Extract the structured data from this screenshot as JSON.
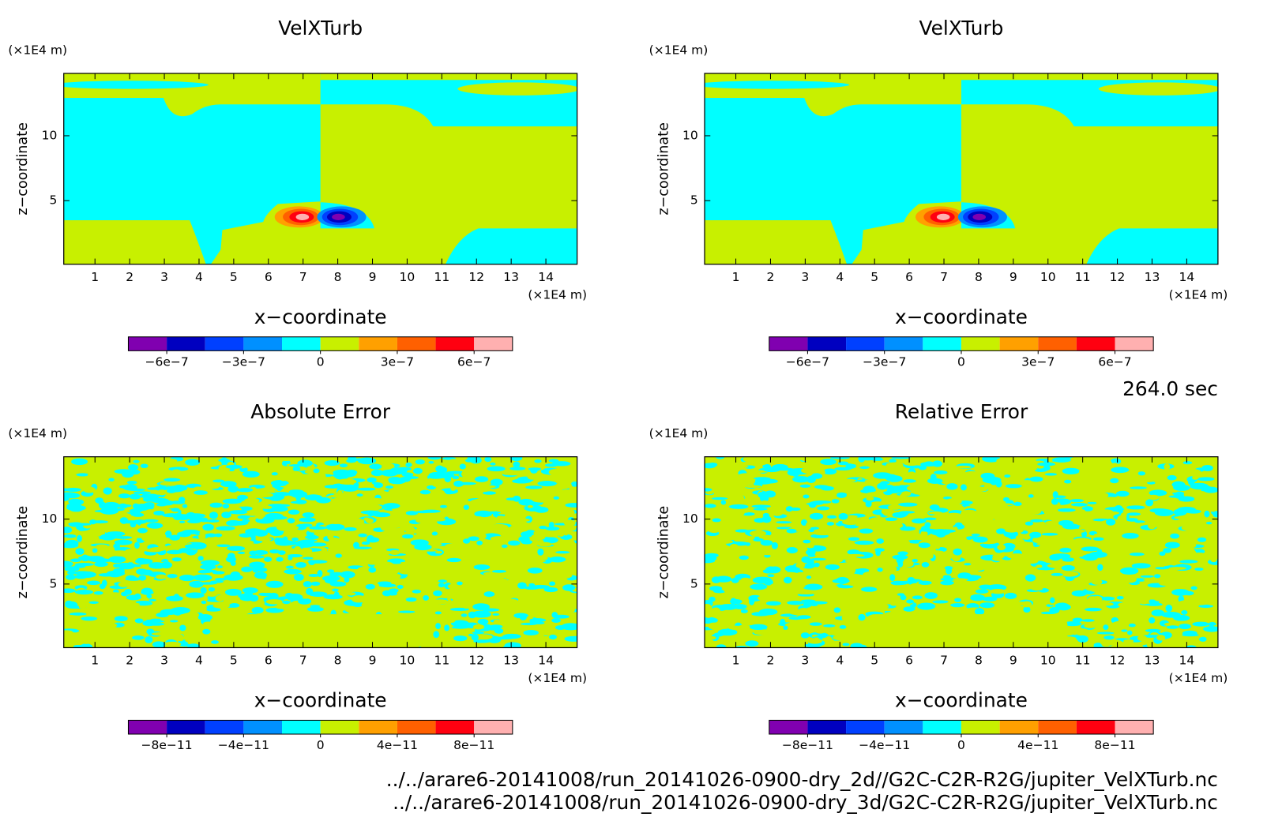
{
  "chart_data": [
    {
      "type": "contour",
      "title": "VelXTurb",
      "xlabel": "x−coordinate",
      "ylabel": "z−coordinate",
      "x_unit": "(×1E4 m)",
      "y_unit": "(×1E4 m)",
      "xlim": [
        0.1,
        14.9
      ],
      "xticks": [
        1,
        2,
        3,
        4,
        5,
        6,
        7,
        8,
        9,
        10,
        11,
        12,
        13,
        14
      ],
      "ylim": [
        0.1,
        14.8
      ],
      "yticks": [
        5,
        10
      ],
      "colorbar": {
        "colors": [
          "#8000b0",
          "#0000c0",
          "#0040ff",
          "#0090ff",
          "#00ffff",
          "#c8f000",
          "#ffa000",
          "#ff6000",
          "#ff0010",
          "#ffb0b0"
        ],
        "clim": [
          -7.5e-07,
          7.5e-07
        ],
        "ticks": [
          {
            "value": -6e-07,
            "label": "−6e−7"
          },
          {
            "value": -3e-07,
            "label": "−3e−7"
          },
          0,
          {
            "value": 3e-07,
            "label": "3e−7"
          },
          {
            "value": 6e-07,
            "label": "6e−7"
          }
        ]
      }
    },
    {
      "type": "contour",
      "title": "VelXTurb",
      "xlabel": "x−coordinate",
      "ylabel": "z−coordinate",
      "x_unit": "(×1E4 m)",
      "y_unit": "(×1E4 m)",
      "xlim": [
        0.1,
        14.9
      ],
      "xticks": [
        1,
        2,
        3,
        4,
        5,
        6,
        7,
        8,
        9,
        10,
        11,
        12,
        13,
        14
      ],
      "ylim": [
        0.1,
        14.8
      ],
      "yticks": [
        5,
        10
      ],
      "colorbar": {
        "colors": [
          "#8000b0",
          "#0000c0",
          "#0040ff",
          "#0090ff",
          "#00ffff",
          "#c8f000",
          "#ffa000",
          "#ff6000",
          "#ff0010",
          "#ffb0b0"
        ],
        "clim": [
          -7.5e-07,
          7.5e-07
        ],
        "ticks": [
          {
            "value": -6e-07,
            "label": "−6e−7"
          },
          {
            "value": -3e-07,
            "label": "−3e−7"
          },
          0,
          {
            "value": 3e-07,
            "label": "3e−7"
          },
          {
            "value": 6e-07,
            "label": "6e−7"
          }
        ]
      }
    },
    {
      "type": "contour",
      "title": "Absolute Error",
      "xlabel": "x−coordinate",
      "ylabel": "z−coordinate",
      "x_unit": "(×1E4 m)",
      "y_unit": "(×1E4 m)",
      "xlim": [
        0.1,
        14.9
      ],
      "xticks": [
        1,
        2,
        3,
        4,
        5,
        6,
        7,
        8,
        9,
        10,
        11,
        12,
        13,
        14
      ],
      "ylim": [
        0.1,
        14.8
      ],
      "yticks": [
        5,
        10
      ],
      "colorbar": {
        "colors": [
          "#8000b0",
          "#0000c0",
          "#0040ff",
          "#0090ff",
          "#00ffff",
          "#c8f000",
          "#ffa000",
          "#ff6000",
          "#ff0010",
          "#ffb0b0"
        ],
        "clim": [
          -1e-10,
          1e-10
        ],
        "ticks": [
          {
            "value": -8e-11,
            "label": "−8e−11"
          },
          {
            "value": -4e-11,
            "label": "−4e−11"
          },
          0,
          {
            "value": 4e-11,
            "label": "4e−11"
          },
          {
            "value": 8e-11,
            "label": "8e−11"
          }
        ]
      }
    },
    {
      "type": "contour",
      "title": "Relative Error",
      "xlabel": "x−coordinate",
      "ylabel": "z−coordinate",
      "x_unit": "(×1E4 m)",
      "y_unit": "(×1E4 m)",
      "xlim": [
        0.1,
        14.9
      ],
      "xticks": [
        1,
        2,
        3,
        4,
        5,
        6,
        7,
        8,
        9,
        10,
        11,
        12,
        13,
        14
      ],
      "ylim": [
        0.1,
        14.8
      ],
      "yticks": [
        5,
        10
      ],
      "colorbar": {
        "colors": [
          "#8000b0",
          "#0000c0",
          "#0040ff",
          "#0090ff",
          "#00ffff",
          "#c8f000",
          "#ffa000",
          "#ff6000",
          "#ff0010",
          "#ffb0b0"
        ],
        "clim": [
          -1e-10,
          1e-10
        ],
        "ticks": [
          {
            "value": -8e-11,
            "label": "−8e−11"
          },
          {
            "value": -4e-11,
            "label": "−4e−11"
          },
          0,
          {
            "value": 4e-11,
            "label": "4e−11"
          },
          {
            "value": 8e-11,
            "label": "8e−11"
          }
        ]
      }
    }
  ],
  "annotations": {
    "time": "264.0 sec",
    "files": [
      "../../arare6-20141008/run_20141026-0900-dry_2d//G2C-C2R-R2G/jupiter_VelXTurb.nc",
      "../../arare6-20141008/run_20141026-0900-dry_3d/G2C-C2R-R2G/jupiter_VelXTurb.nc"
    ]
  }
}
